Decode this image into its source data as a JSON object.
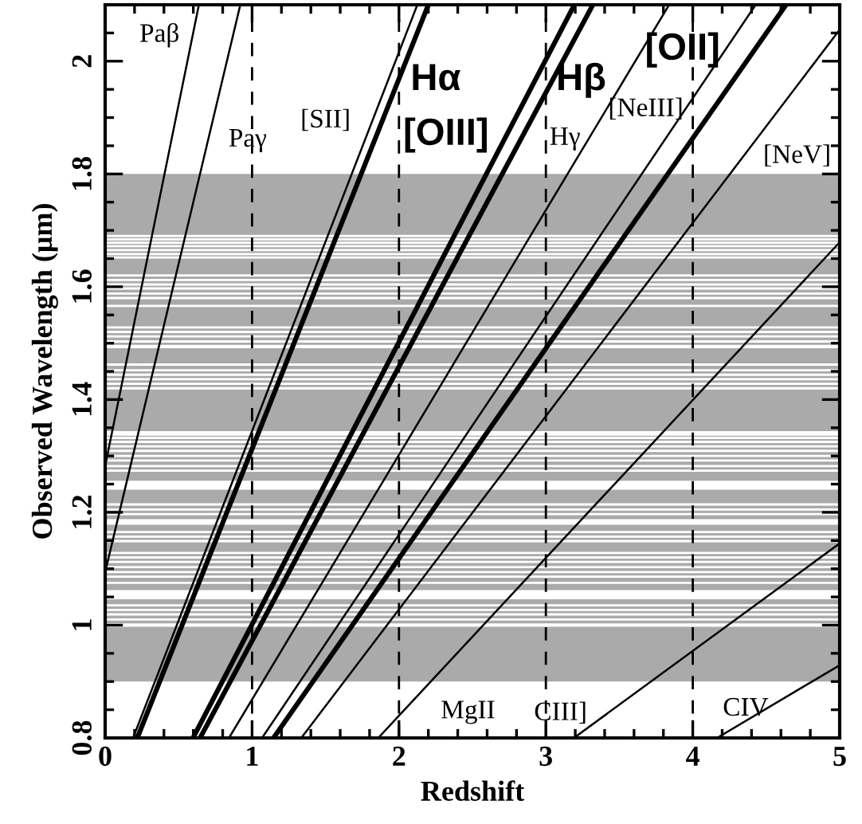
{
  "chart_data": {
    "type": "line",
    "xlabel": "Redshift",
    "ylabel": "Observed Wavelength (μm)",
    "xlim": [
      0,
      5
    ],
    "ylim": [
      0.8,
      2.1
    ],
    "xticks": [
      0,
      {
        "value": 0.2,
        "label": null
      },
      {
        "value": 0.4,
        "label": null
      },
      {
        "value": 0.6,
        "label": null
      },
      {
        "value": 0.8,
        "label": null
      },
      1,
      {
        "value": 1.2,
        "label": null
      },
      {
        "value": 1.4,
        "label": null
      },
      {
        "value": 1.6,
        "label": null
      },
      {
        "value": 1.8,
        "label": null
      },
      2,
      {
        "value": 2.2,
        "label": null
      },
      {
        "value": 2.4,
        "label": null
      },
      {
        "value": 2.6,
        "label": null
      },
      {
        "value": 2.8,
        "label": null
      },
      3,
      {
        "value": 3.2,
        "label": null
      },
      {
        "value": 3.4,
        "label": null
      },
      {
        "value": 3.6,
        "label": null
      },
      {
        "value": 3.8,
        "label": null
      },
      4,
      {
        "value": 4.2,
        "label": null
      },
      {
        "value": 4.4,
        "label": null
      },
      {
        "value": 4.6,
        "label": null
      },
      {
        "value": 4.8,
        "label": null
      },
      5
    ],
    "yticks": [
      0.8,
      {
        "value": 0.85,
        "label": null
      },
      {
        "value": 0.9,
        "label": null
      },
      {
        "value": 0.95,
        "label": null
      },
      1,
      {
        "value": 1.05,
        "label": null
      },
      {
        "value": 1.1,
        "label": null
      },
      {
        "value": 1.15,
        "label": null
      },
      1.2,
      {
        "value": 1.25,
        "label": null
      },
      {
        "value": 1.3,
        "label": null
      },
      {
        "value": 1.35,
        "label": null
      },
      1.4,
      {
        "value": 1.45,
        "label": null
      },
      {
        "value": 1.5,
        "label": null
      },
      {
        "value": 1.55,
        "label": null
      },
      1.6,
      {
        "value": 1.65,
        "label": null
      },
      {
        "value": 1.7,
        "label": null
      },
      {
        "value": 1.75,
        "label": null
      },
      1.8,
      {
        "value": 1.85,
        "label": null
      },
      {
        "value": 1.9,
        "label": null
      },
      {
        "value": 1.95,
        "label": null
      },
      2,
      {
        "value": 2.05,
        "label": null
      }
    ],
    "grid": false,
    "legend": "top",
    "line_style": "solid",
    "marker": "none",
    "series": [
      {
        "name": "Paβ",
        "color": "#000000",
        "x": [
          0,
          0.638
        ],
        "values": [
          1.282,
          2.1
        ]
      },
      {
        "name": "Paγ",
        "color": "#000000",
        "x": [
          0,
          0.92
        ],
        "values": [
          1.094,
          2.1
        ]
      },
      {
        "name": "[SII]",
        "color": "#000000",
        "x": [
          0.19,
          2.125
        ],
        "values": [
          0.8,
          2.1
        ]
      },
      {
        "name": "Hα",
        "color": "#000000",
        "x": [
          0.219,
          2.2
        ],
        "values": [
          0.8,
          2.1
        ]
      },
      {
        "name": "[OIII]",
        "color": "#000000",
        "x": [
          0.598,
          3.194
        ],
        "values": [
          0.8,
          2.1
        ]
      },
      {
        "name": "Hβ",
        "color": "#000000",
        "x": [
          0.646,
          3.32
        ],
        "values": [
          0.8,
          2.1
        ]
      },
      {
        "name": "Hγ",
        "color": "#000000",
        "x": [
          0.843,
          3.839
        ],
        "values": [
          0.8,
          2.1
        ]
      },
      {
        "name": "[NeIII]",
        "color": "#000000",
        "x": [
          1.068,
          4.428
        ],
        "values": [
          0.8,
          2.1
        ]
      },
      {
        "name": "[OII]",
        "color": "#000000",
        "x": [
          1.146,
          4.635
        ],
        "values": [
          0.8,
          2.1
        ]
      },
      {
        "name": "[NeV]",
        "color": "#000000",
        "x": [
          1.335,
          5
        ],
        "values": [
          0.8,
          2.056
        ]
      },
      {
        "name": "MgII",
        "color": "#000000",
        "x": [
          1.859,
          5
        ],
        "values": [
          0.8,
          1.679
        ]
      },
      {
        "name": "CIII]",
        "color": "#000000",
        "x": [
          3.191,
          5
        ],
        "values": [
          0.8,
          1.145
        ]
      },
      {
        "name": "CIV",
        "color": "#000000",
        "x": [
          4.165,
          5
        ],
        "values": [
          0.8,
          0.929
        ]
      }
    ],
    "ref_lines": [
      {
        "axis": "x",
        "value": 1,
        "line_style": "dashed",
        "color": "#000000"
      },
      {
        "axis": "x",
        "value": 2,
        "line_style": "dashed",
        "color": "#000000"
      },
      {
        "axis": "x",
        "value": 3,
        "line_style": "dashed",
        "color": "#000000"
      },
      {
        "axis": "x",
        "value": 4,
        "line_style": "dashed",
        "color": "#000000"
      }
    ],
    "bands": [
      {
        "axis": "y",
        "from": 0.9,
        "to": 1.8,
        "color": "#aaaaaa"
      },
      {
        "axis": "y",
        "from": 1.688,
        "to": 1.692,
        "color": "#ffffff"
      },
      {
        "axis": "y",
        "from": 1.682,
        "to": 1.686,
        "color": "#ffffff"
      },
      {
        "axis": "y",
        "from": 1.676,
        "to": 1.68,
        "color": "#ffffff"
      },
      {
        "axis": "y",
        "from": 1.67,
        "to": 1.674,
        "color": "#ffffff"
      },
      {
        "axis": "y",
        "from": 1.663,
        "to": 1.667,
        "color": "#ffffff"
      },
      {
        "axis": "y",
        "from": 1.656,
        "to": 1.66,
        "color": "#ffffff"
      },
      {
        "axis": "y",
        "from": 1.65,
        "to": 1.654,
        "color": "#ffffff"
      },
      {
        "axis": "y",
        "from": 1.618,
        "to": 1.622,
        "color": "#ffffff"
      },
      {
        "axis": "y",
        "from": 1.61,
        "to": 1.614,
        "color": "#ffffff"
      },
      {
        "axis": "y",
        "from": 1.602,
        "to": 1.606,
        "color": "#ffffff"
      },
      {
        "axis": "y",
        "from": 1.595,
        "to": 1.599,
        "color": "#ffffff"
      },
      {
        "axis": "y",
        "from": 1.586,
        "to": 1.59,
        "color": "#ffffff"
      },
      {
        "axis": "y",
        "from": 1.578,
        "to": 1.582,
        "color": "#ffffff"
      },
      {
        "axis": "y",
        "from": 1.564,
        "to": 1.568,
        "color": "#ffffff"
      },
      {
        "axis": "y",
        "from": 1.526,
        "to": 1.53,
        "color": "#ffffff"
      },
      {
        "axis": "y",
        "from": 1.518,
        "to": 1.522,
        "color": "#ffffff"
      },
      {
        "axis": "y",
        "from": 1.51,
        "to": 1.514,
        "color": "#ffffff"
      },
      {
        "axis": "y",
        "from": 1.501,
        "to": 1.505,
        "color": "#ffffff"
      },
      {
        "axis": "y",
        "from": 1.491,
        "to": 1.497,
        "color": "#ffffff"
      },
      {
        "axis": "y",
        "from": 1.46,
        "to": 1.464,
        "color": "#ffffff"
      },
      {
        "axis": "y",
        "from": 1.45,
        "to": 1.454,
        "color": "#ffffff"
      },
      {
        "axis": "y",
        "from": 1.442,
        "to": 1.446,
        "color": "#ffffff"
      },
      {
        "axis": "y",
        "from": 1.434,
        "to": 1.438,
        "color": "#ffffff"
      },
      {
        "axis": "y",
        "from": 1.426,
        "to": 1.43,
        "color": "#ffffff"
      },
      {
        "axis": "y",
        "from": 1.418,
        "to": 1.422,
        "color": "#ffffff"
      },
      {
        "axis": "y",
        "from": 1.336,
        "to": 1.344,
        "color": "#ffffff"
      },
      {
        "axis": "y",
        "from": 1.33,
        "to": 1.334,
        "color": "#ffffff"
      },
      {
        "axis": "y",
        "from": 1.323,
        "to": 1.327,
        "color": "#ffffff"
      },
      {
        "axis": "y",
        "from": 1.315,
        "to": 1.319,
        "color": "#ffffff"
      },
      {
        "axis": "y",
        "from": 1.307,
        "to": 1.311,
        "color": "#ffffff"
      },
      {
        "axis": "y",
        "from": 1.298,
        "to": 1.302,
        "color": "#ffffff"
      },
      {
        "axis": "y",
        "from": 1.29,
        "to": 1.294,
        "color": "#ffffff"
      },
      {
        "axis": "y",
        "from": 1.28,
        "to": 1.284,
        "color": "#ffffff"
      },
      {
        "axis": "y",
        "from": 1.272,
        "to": 1.276,
        "color": "#ffffff"
      },
      {
        "axis": "y",
        "from": 1.24,
        "to": 1.256,
        "color": "#ffffff"
      },
      {
        "axis": "y",
        "from": 1.212,
        "to": 1.216,
        "color": "#ffffff"
      },
      {
        "axis": "y",
        "from": 1.203,
        "to": 1.207,
        "color": "#ffffff"
      },
      {
        "axis": "y",
        "from": 1.195,
        "to": 1.199,
        "color": "#ffffff"
      },
      {
        "axis": "y",
        "from": 1.178,
        "to": 1.188,
        "color": "#ffffff"
      },
      {
        "axis": "y",
        "from": 1.163,
        "to": 1.167,
        "color": "#ffffff"
      },
      {
        "axis": "y",
        "from": 1.155,
        "to": 1.159,
        "color": "#ffffff"
      },
      {
        "axis": "y",
        "from": 1.147,
        "to": 1.151,
        "color": "#ffffff"
      },
      {
        "axis": "y",
        "from": 1.126,
        "to": 1.13,
        "color": "#ffffff"
      },
      {
        "axis": "y",
        "from": 1.118,
        "to": 1.122,
        "color": "#ffffff"
      },
      {
        "axis": "y",
        "from": 1.11,
        "to": 1.114,
        "color": "#ffffff"
      },
      {
        "axis": "y",
        "from": 1.101,
        "to": 1.105,
        "color": "#ffffff"
      },
      {
        "axis": "y",
        "from": 1.092,
        "to": 1.096,
        "color": "#ffffff"
      },
      {
        "axis": "y",
        "from": 1.084,
        "to": 1.088,
        "color": "#ffffff"
      },
      {
        "axis": "y",
        "from": 1.073,
        "to": 1.077,
        "color": "#ffffff"
      },
      {
        "axis": "y",
        "from": 1.046,
        "to": 1.062,
        "color": "#ffffff"
      },
      {
        "axis": "y",
        "from": 1.033,
        "to": 1.037,
        "color": "#ffffff"
      },
      {
        "axis": "y",
        "from": 1.025,
        "to": 1.029,
        "color": "#ffffff"
      },
      {
        "axis": "y",
        "from": 1.017,
        "to": 1.021,
        "color": "#ffffff"
      },
      {
        "axis": "y",
        "from": 1.008,
        "to": 1.012,
        "color": "#ffffff"
      },
      {
        "axis": "y",
        "from": 0.997,
        "to": 1.003,
        "color": "#ffffff"
      }
    ]
  }
}
